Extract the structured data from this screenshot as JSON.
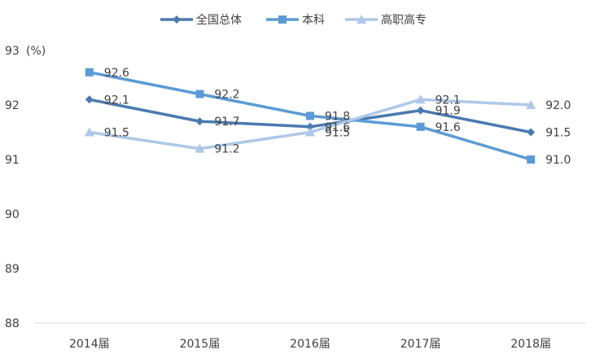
{
  "chart_data": {
    "type": "line",
    "title": "",
    "xlabel": "",
    "ylabel": "(%)",
    "ylim": [
      88,
      93
    ],
    "yticks": [
      88,
      89,
      90,
      91,
      92,
      93
    ],
    "categories": [
      "2014届",
      "2015届",
      "2016届",
      "2017届",
      "2018届"
    ],
    "series": [
      {
        "name": "全国总体",
        "values": [
          92.1,
          91.7,
          91.6,
          91.9,
          91.5
        ],
        "labels": [
          "92.1",
          "91.7",
          "91.6",
          "91.9",
          "91.5"
        ],
        "color": "#4a7ab0",
        "marker": "diamond"
      },
      {
        "name": "本科",
        "values": [
          92.6,
          92.2,
          91.8,
          91.6,
          91.0
        ],
        "labels": [
          "92.6",
          "92.2",
          "91.8",
          "91.6",
          "91.0"
        ],
        "color": "#5b9bd5",
        "marker": "square"
      },
      {
        "name": "高职高专",
        "values": [
          91.5,
          91.2,
          91.5,
          92.1,
          92.0
        ],
        "labels": [
          "91.5",
          "91.2",
          "91.5",
          "92.1",
          "92.0"
        ],
        "color": "#aec8e8",
        "marker": "triangle"
      }
    ],
    "legend_position": "top-center",
    "grid": false
  }
}
